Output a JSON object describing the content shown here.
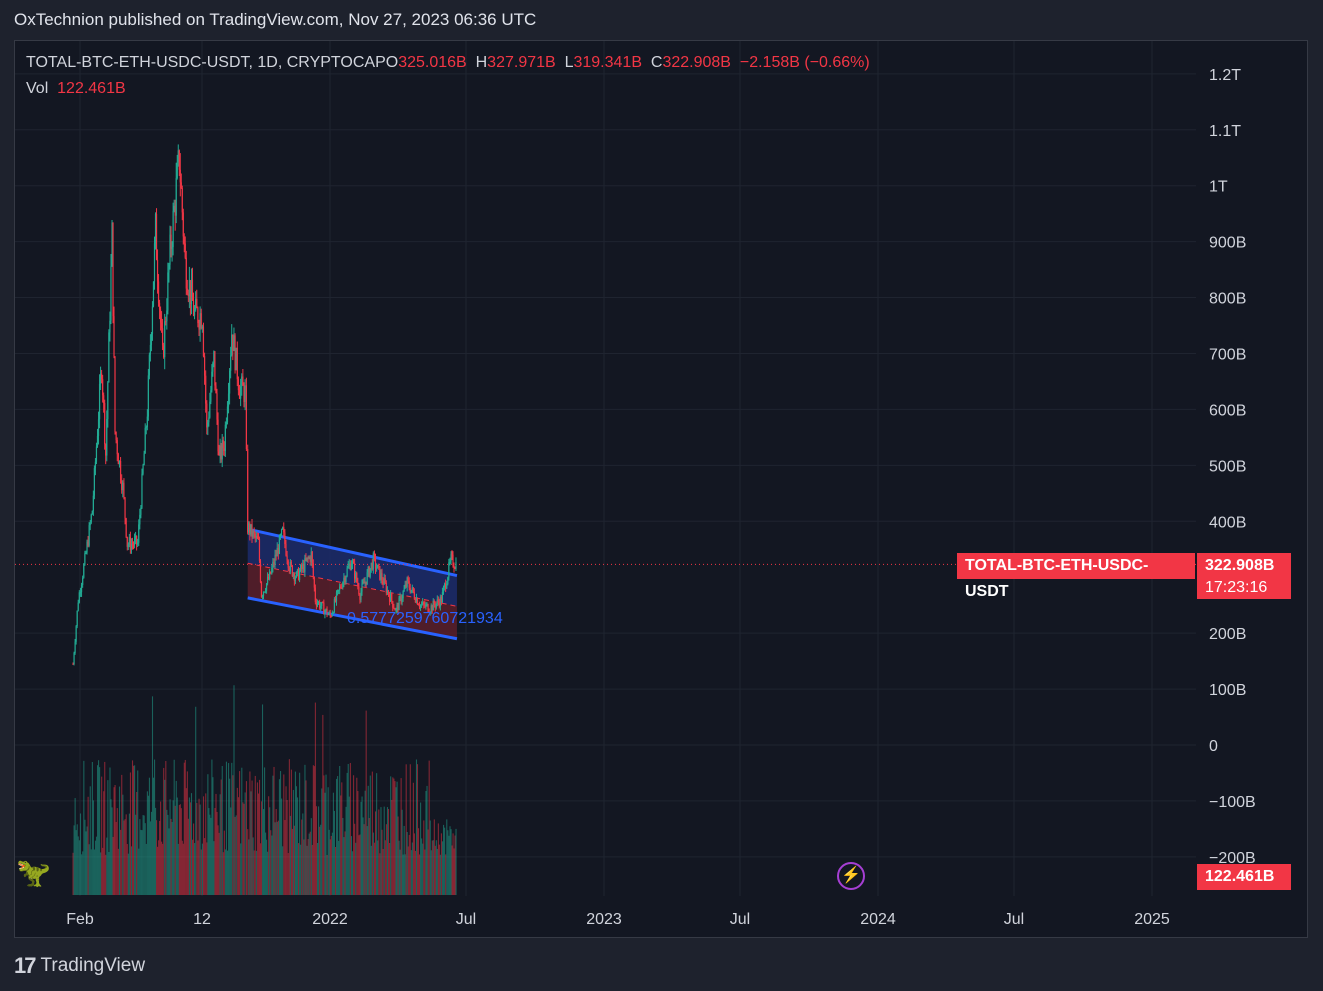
{
  "header": {
    "text": "OxTechnion published on TradingView.com, Nov 27, 2023 06:36 UTC"
  },
  "legend": {
    "symbol": "TOTAL-BTC-ETH-USDC-USDT, 1D, CRYPTOCAP",
    "o_label": "O",
    "o": "325.016B",
    "h_label": "H",
    "h": "327.971B",
    "l_label": "L",
    "l": "319.341B",
    "c_label": "C",
    "c": "322.908B",
    "change": "−2.158B (−0.66%)",
    "vol_label": "Vol",
    "vol": "122.461B"
  },
  "price_tag": {
    "symbol": "TOTAL-BTC-ETH-USDC-USDT",
    "price": "322.908B",
    "countdown": "17:23:16"
  },
  "volume_tag": "122.461B",
  "channel_label": "0.5777259760721934",
  "footer": {
    "brand": "TradingView"
  },
  "colors": {
    "up": "#22ab94",
    "down": "#f23645",
    "channel": "#2962ff",
    "channel_fill_top": "#1c2b6b",
    "channel_fill_bottom": "#5a1f2a",
    "bg": "#131722"
  },
  "icons": [
    "tradingview-logo-icon",
    "lightning-icon",
    "dino-icon"
  ],
  "chart_data": {
    "type": "candlestick",
    "title": "TOTAL-BTC-ETH-USDC-USDT, 1D, CRYPTOCAP",
    "y_ticks": [
      "1.2T",
      "1.1T",
      "1T",
      "900B",
      "800B",
      "700B",
      "600B",
      "500B",
      "400B",
      "200B",
      "100B",
      "0",
      "−100B",
      "−200B"
    ],
    "x_ticks": [
      "Feb",
      "12",
      "2022",
      "Jul",
      "2023",
      "Jul",
      "2024",
      "Jul",
      "2025"
    ],
    "ylim": [
      -200,
      1200
    ],
    "y_unit": "B",
    "price_path": [
      [
        "2021-01-27",
        145
      ],
      [
        "2021-02-10",
        260
      ],
      [
        "2021-02-28",
        330
      ],
      [
        "2021-03-20",
        420
      ],
      [
        "2021-04-14",
        680
      ],
      [
        "2021-04-25",
        520
      ],
      [
        "2021-05-12",
        910
      ],
      [
        "2021-05-20",
        560
      ],
      [
        "2021-06-10",
        460
      ],
      [
        "2021-06-22",
        360
      ],
      [
        "2021-07-20",
        360
      ],
      [
        "2021-08-15",
        600
      ],
      [
        "2021-09-06",
        920
      ],
      [
        "2021-09-25",
        690
      ],
      [
        "2021-10-15",
        880
      ],
      [
        "2021-11-09",
        1050
      ],
      [
        "2021-11-25",
        860
      ],
      [
        "2021-12-20",
        770
      ],
      [
        "2022-01-10",
        770
      ],
      [
        "2022-01-22",
        560
      ],
      [
        "2022-02-10",
        690
      ],
      [
        "2022-02-24",
        510
      ],
      [
        "2022-03-10",
        540
      ],
      [
        "2022-03-30",
        740
      ],
      [
        "2022-04-20",
        640
      ],
      [
        "2022-05-05",
        630
      ],
      [
        "2022-05-12",
        390
      ],
      [
        "2022-06-10",
        360
      ],
      [
        "2022-06-18",
        270
      ],
      [
        "2022-07-10",
        300
      ],
      [
        "2022-08-14",
        380
      ],
      [
        "2022-09-01",
        320
      ],
      [
        "2022-09-20",
        300
      ],
      [
        "2022-10-30",
        340
      ],
      [
        "2022-11-10",
        260
      ],
      [
        "2022-12-20",
        230
      ],
      [
        "2023-01-20",
        290
      ],
      [
        "2023-02-15",
        330
      ],
      [
        "2023-03-10",
        270
      ],
      [
        "2023-04-15",
        330
      ],
      [
        "2023-05-20",
        280
      ],
      [
        "2023-06-15",
        240
      ],
      [
        "2023-07-15",
        290
      ],
      [
        "2023-08-20",
        250
      ],
      [
        "2023-09-15",
        245
      ],
      [
        "2023-10-15",
        260
      ],
      [
        "2023-11-10",
        330
      ],
      [
        "2023-11-26",
        323
      ]
    ],
    "channel": {
      "upper": [
        [
          "2022-05-12",
          386
        ],
        [
          "2023-11-26",
          303
        ]
      ],
      "lower": [
        [
          "2022-05-12",
          263
        ],
        [
          "2023-11-26",
          190
        ]
      ],
      "mid": [
        [
          "2022-05-12",
          325
        ],
        [
          "2023-11-26",
          248
        ]
      ]
    },
    "last_price": 322.908,
    "last_volume": 122.461
  }
}
